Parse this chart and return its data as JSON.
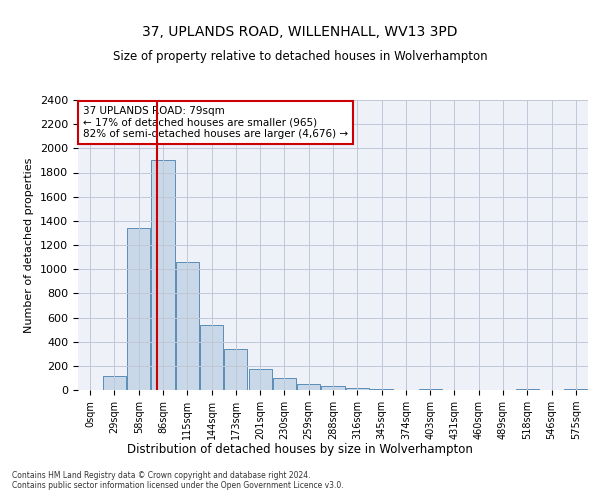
{
  "title1": "37, UPLANDS ROAD, WILLENHALL, WV13 3PD",
  "title2": "Size of property relative to detached houses in Wolverhampton",
  "xlabel": "Distribution of detached houses by size in Wolverhampton",
  "ylabel": "Number of detached properties",
  "footer1": "Contains HM Land Registry data © Crown copyright and database right 2024.",
  "footer2": "Contains public sector information licensed under the Open Government Licence v3.0.",
  "annotation_line1": "37 UPLANDS ROAD: 79sqm",
  "annotation_line2": "← 17% of detached houses are smaller (965)",
  "annotation_line3": "82% of semi-detached houses are larger (4,676) →",
  "bar_categories": [
    "0sqm",
    "29sqm",
    "58sqm",
    "86sqm",
    "115sqm",
    "144sqm",
    "173sqm",
    "201sqm",
    "230sqm",
    "259sqm",
    "288sqm",
    "316sqm",
    "345sqm",
    "374sqm",
    "403sqm",
    "431sqm",
    "460sqm",
    "489sqm",
    "518sqm",
    "546sqm",
    "575sqm"
  ],
  "bar_values": [
    0,
    120,
    1340,
    1900,
    1060,
    540,
    340,
    170,
    100,
    50,
    30,
    20,
    10,
    0,
    10,
    0,
    0,
    0,
    10,
    0,
    10
  ],
  "bar_color": "#c8d8e8",
  "bar_edge_color": "#5b8db8",
  "vline_color": "#cc0000",
  "annotation_box_color": "#cc0000",
  "ylim": [
    0,
    2400
  ],
  "yticks": [
    0,
    200,
    400,
    600,
    800,
    1000,
    1200,
    1400,
    1600,
    1800,
    2000,
    2200,
    2400
  ],
  "grid_color": "#c0c8d8",
  "bg_color": "#eef2f8",
  "fig_width": 6.0,
  "fig_height": 5.0,
  "dpi": 100
}
